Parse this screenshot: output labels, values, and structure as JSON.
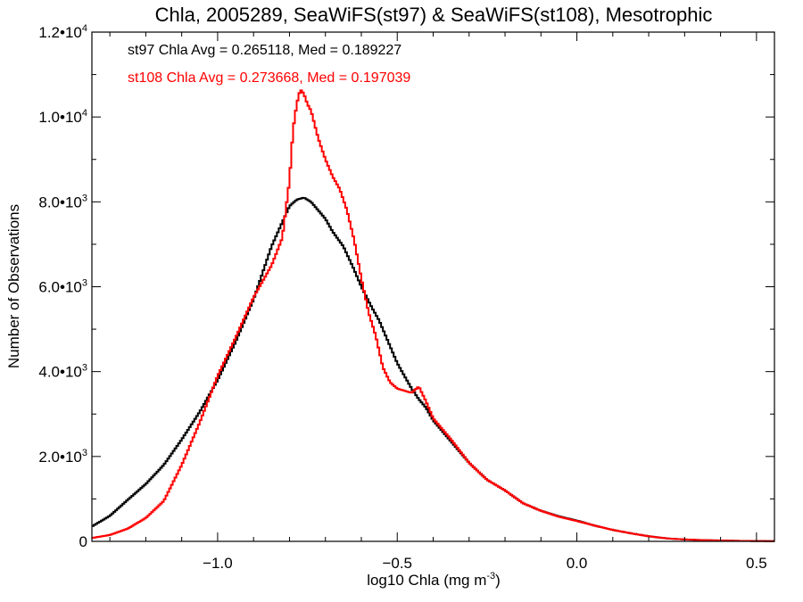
{
  "chart_data": {
    "type": "line",
    "step": true,
    "title": "Chla, 2005289, SeaWiFS(st97) & SeaWiFS(st108), Mesotrophic",
    "xlabel_main": "log10 Chla (mg m",
    "xlabel_sup": "-3",
    "xlabel_close": ")",
    "ylabel": "Number of Observations",
    "xlim": [
      -1.35,
      0.55
    ],
    "ylim": [
      0,
      12000
    ],
    "xticks": [
      {
        "value": -1.0,
        "label": "−1.0"
      },
      {
        "value": -0.5,
        "label": "−0.5"
      },
      {
        "value": 0.0,
        "label": "0.0"
      },
      {
        "value": 0.5,
        "label": "0.5"
      }
    ],
    "yticks": [
      {
        "value": 0,
        "mant": "0",
        "exp": ""
      },
      {
        "value": 2000,
        "mant": "2.0•10",
        "exp": "3"
      },
      {
        "value": 4000,
        "mant": "4.0•10",
        "exp": "3"
      },
      {
        "value": 6000,
        "mant": "6.0•10",
        "exp": "3"
      },
      {
        "value": 8000,
        "mant": "8.0•10",
        "exp": "3"
      },
      {
        "value": 10000,
        "mant": "1.0•10",
        "exp": "4"
      },
      {
        "value": 12000,
        "mant": "1.2•10",
        "exp": "4"
      }
    ],
    "annotations": [
      {
        "text": "st97 Chla Avg = 0.265118, Med = 0.189227",
        "color": "#000000"
      },
      {
        "text": "st108 Chla Avg = 0.273668, Med = 0.197039",
        "color": "#ff0000"
      }
    ],
    "series": [
      {
        "color": "#000000",
        "x": [
          -1.35,
          -1.3,
          -1.25,
          -1.2,
          -1.15,
          -1.1,
          -1.05,
          -1.0,
          -0.95,
          -0.9,
          -0.85,
          -0.8,
          -0.78,
          -0.76,
          -0.74,
          -0.72,
          -0.7,
          -0.68,
          -0.65,
          -0.62,
          -0.6,
          -0.57,
          -0.55,
          -0.52,
          -0.5,
          -0.48,
          -0.46,
          -0.44,
          -0.42,
          -0.4,
          -0.35,
          -0.3,
          -0.25,
          -0.2,
          -0.15,
          -0.1,
          -0.05,
          0.0,
          0.05,
          0.1,
          0.15,
          0.2,
          0.25,
          0.3,
          0.35,
          0.4,
          0.45,
          0.5,
          0.55
        ],
        "y": [
          350,
          600,
          980,
          1350,
          1800,
          2400,
          3050,
          3800,
          4700,
          5700,
          6950,
          7900,
          8050,
          8100,
          8000,
          7800,
          7600,
          7300,
          6950,
          6400,
          6000,
          5500,
          5200,
          4600,
          4200,
          3900,
          3600,
          3350,
          3150,
          2850,
          2350,
          1850,
          1450,
          1200,
          900,
          720,
          590,
          490,
          370,
          270,
          190,
          120,
          70,
          45,
          30,
          20,
          12,
          8,
          5
        ]
      },
      {
        "color": "#ff0000",
        "x": [
          -1.35,
          -1.3,
          -1.25,
          -1.2,
          -1.15,
          -1.1,
          -1.05,
          -1.0,
          -0.95,
          -0.9,
          -0.85,
          -0.82,
          -0.8,
          -0.79,
          -0.78,
          -0.77,
          -0.76,
          -0.75,
          -0.74,
          -0.72,
          -0.7,
          -0.68,
          -0.66,
          -0.64,
          -0.62,
          -0.6,
          -0.58,
          -0.56,
          -0.54,
          -0.52,
          -0.5,
          -0.48,
          -0.46,
          -0.44,
          -0.42,
          -0.4,
          -0.35,
          -0.3,
          -0.25,
          -0.2,
          -0.15,
          -0.1,
          -0.05,
          0.0,
          0.05,
          0.1,
          0.15,
          0.2,
          0.25,
          0.3,
          0.35,
          0.4,
          0.45,
          0.5,
          0.55
        ],
        "y": [
          80,
          150,
          300,
          550,
          950,
          1800,
          2800,
          3900,
          4800,
          5750,
          6500,
          7150,
          8500,
          9700,
          10300,
          10650,
          10550,
          10300,
          10150,
          9500,
          9000,
          8600,
          8300,
          7800,
          7100,
          6200,
          5400,
          4850,
          4100,
          3750,
          3600,
          3550,
          3500,
          3650,
          3300,
          2900,
          2400,
          1850,
          1450,
          1200,
          900,
          720,
          580,
          480,
          370,
          270,
          190,
          120,
          70,
          45,
          30,
          20,
          12,
          8,
          5
        ]
      }
    ]
  }
}
